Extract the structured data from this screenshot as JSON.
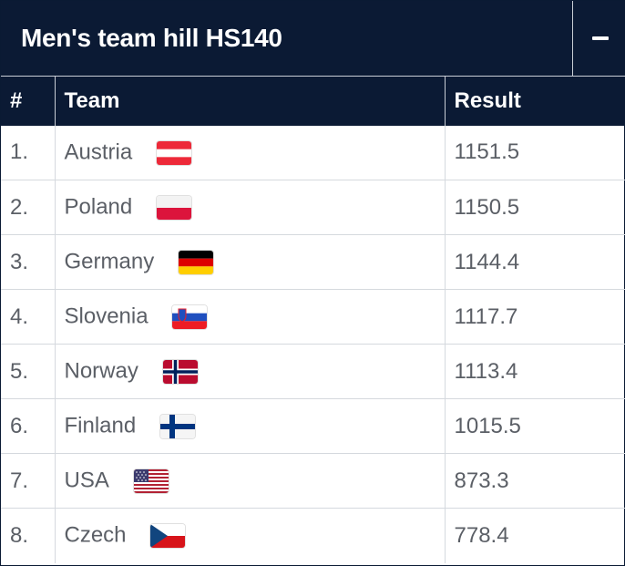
{
  "panel": {
    "title": "Men's team hill HS140",
    "collapse_symbol": "−"
  },
  "columns": {
    "rank": "#",
    "team": "Team",
    "result": "Result"
  },
  "rows": [
    {
      "rank": "1.",
      "team": "Austria",
      "flag": "flag-austria-icon",
      "result": "1151.5"
    },
    {
      "rank": "2.",
      "team": "Poland",
      "flag": "flag-poland-icon",
      "result": "1150.5"
    },
    {
      "rank": "3.",
      "team": "Germany",
      "flag": "flag-germany-icon",
      "result": "1144.4"
    },
    {
      "rank": "4.",
      "team": "Slovenia",
      "flag": "flag-slovenia-icon",
      "result": "1117.7"
    },
    {
      "rank": "5.",
      "team": "Norway",
      "flag": "flag-norway-icon",
      "result": "1113.4"
    },
    {
      "rank": "6.",
      "team": "Finland",
      "flag": "flag-finland-icon",
      "result": "1015.5"
    },
    {
      "rank": "7.",
      "team": "USA",
      "flag": "flag-usa-icon",
      "result": "873.3"
    },
    {
      "rank": "8.",
      "team": "Czech",
      "flag": "flag-czech-icon",
      "result": "778.4"
    }
  ],
  "colors": {
    "header_bg": "#0b1a34",
    "header_text": "#ffffff",
    "cell_text": "#5b5f66",
    "grid_line": "#d5d9de"
  }
}
